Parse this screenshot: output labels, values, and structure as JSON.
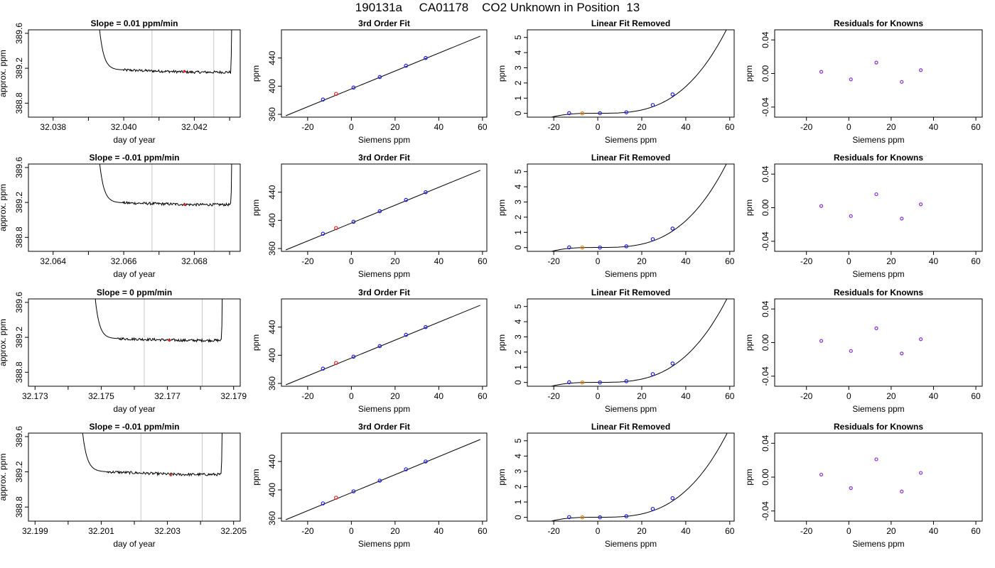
{
  "figure_title": "190131a     CA01178    CO2 Unknown in Position  13",
  "colors": {
    "trace": "#000000",
    "marker_lines": "#c8c8c8",
    "highlight_point": "#e8201c",
    "known_points": "#1c1cf0",
    "unknown_fit_point": "#e8201c",
    "unknown_removed_point": "#f08000",
    "residual_points": "#8a2be2"
  },
  "chart_data": [
    {
      "type": "line",
      "row": 1,
      "panel": "time-series",
      "title": "Slope =  0.01  ppm/min",
      "xlabel": "day of year",
      "ylabel": "approx. ppm",
      "xlim": [
        32.0373,
        32.0433
      ],
      "ylim": [
        388.64,
        389.64
      ],
      "xticks": [
        32.038,
        32.04,
        32.042
      ],
      "xticklabels": [
        "32.038",
        "32.040",
        "32.042"
      ],
      "yticks": [
        388.8,
        389.2,
        389.6
      ],
      "yticklabels": [
        "388.8",
        "389.2",
        "389.6"
      ],
      "x_start": 32.0392,
      "x_end": 32.0431,
      "plateau": 389.155,
      "early_offset": 0.025,
      "end_rise_from": 389.18,
      "vlines": [
        32.0408,
        32.04255
      ],
      "highlight": {
        "x": 32.04172,
        "y": 389.165
      }
    },
    {
      "type": "scatter",
      "row": 1,
      "panel": "3rd-order-fit",
      "title": "3rd Order Fit",
      "xlabel": "Siemens ppm",
      "ylabel": "ppm",
      "xlim": [
        -32,
        62
      ],
      "ylim": [
        356,
        480
      ],
      "xticks": [
        -20,
        0,
        20,
        40,
        60
      ],
      "yticks": [
        360,
        400,
        440
      ],
      "line": {
        "x": [
          -30,
          59
        ],
        "y": [
          358,
          471
        ]
      },
      "known_points": {
        "x": [
          -13,
          1,
          13,
          25,
          34
        ],
        "y": [
          381,
          398,
          413,
          429,
          440
        ]
      },
      "unknown_point": {
        "x": [
          -7
        ],
        "y": [
          389
        ]
      }
    },
    {
      "type": "scatter",
      "row": 1,
      "panel": "linear-fit-removed",
      "title": "Linear Fit Removed",
      "xlabel": "Siemens ppm",
      "ylabel": "ppm",
      "xlim": [
        -32,
        62
      ],
      "ylim": [
        -0.25,
        5.5
      ],
      "xticks": [
        -20,
        0,
        20,
        40,
        60
      ],
      "yticks": [
        0,
        1,
        2,
        3,
        4,
        5
      ],
      "curve_x_range": [
        -30,
        59
      ],
      "curve_coefficients": [
        0.005,
        0,
        0,
        2.75e-05
      ],
      "known_points": {
        "x": [
          -13,
          1,
          13,
          25,
          34
        ],
        "y": [
          0.01,
          0.01,
          0.07,
          0.55,
          1.25
        ]
      },
      "unknown_point": {
        "x": [
          -7
        ],
        "y": [
          0.0
        ]
      }
    },
    {
      "type": "scatter",
      "row": 1,
      "panel": "residuals",
      "title": "Residuals for Knowns",
      "xlabel": "Siemens ppm",
      "ylabel": "ppm",
      "xlim": [
        -35,
        63
      ],
      "ylim": [
        -0.052,
        0.052
      ],
      "xticks": [
        -20,
        0,
        20,
        40,
        60
      ],
      "yticks": [
        -0.04,
        0.0,
        0.04
      ],
      "yticklabels": [
        "-0.04",
        "0.00",
        "0.04"
      ],
      "points": {
        "x": [
          -13,
          1,
          13,
          25,
          34
        ],
        "y": [
          0.002,
          -0.007,
          0.013,
          -0.01,
          0.004
        ]
      }
    },
    {
      "type": "line",
      "row": 2,
      "panel": "time-series",
      "title": "Slope =  -0.01  ppm/min",
      "xlabel": "day of year",
      "ylabel": "approx. ppm",
      "xlim": [
        32.0633,
        32.0693
      ],
      "ylim": [
        388.64,
        389.64
      ],
      "xticks": [
        32.064,
        32.066,
        32.068
      ],
      "xticklabels": [
        "32.064",
        "32.066",
        "32.068"
      ],
      "yticks": [
        388.8,
        389.2,
        389.6
      ],
      "yticklabels": [
        "388.8",
        "389.2",
        "389.6"
      ],
      "x_start": 32.0652,
      "x_end": 32.0691,
      "plateau": 389.175,
      "early_offset": 0.02,
      "end_rise_from": 389.16,
      "vlines": [
        32.0668,
        32.06857
      ],
      "highlight": {
        "x": 32.06773,
        "y": 389.175
      }
    },
    {
      "type": "scatter",
      "row": 2,
      "panel": "3rd-order-fit",
      "title": "3rd Order Fit",
      "xlabel": "Siemens ppm",
      "ylabel": "ppm",
      "xlim": [
        -32,
        62
      ],
      "ylim": [
        356,
        480
      ],
      "xticks": [
        -20,
        0,
        20,
        40,
        60
      ],
      "yticks": [
        360,
        400,
        440
      ],
      "line": {
        "x": [
          -30,
          59
        ],
        "y": [
          358,
          471
        ]
      },
      "known_points": {
        "x": [
          -13,
          1,
          13,
          25,
          34
        ],
        "y": [
          381,
          398,
          413,
          429,
          440
        ]
      },
      "unknown_point": {
        "x": [
          -7
        ],
        "y": [
          389
        ]
      }
    },
    {
      "type": "scatter",
      "row": 2,
      "panel": "linear-fit-removed",
      "title": "Linear Fit Removed",
      "xlabel": "Siemens ppm",
      "ylabel": "ppm",
      "xlim": [
        -32,
        62
      ],
      "ylim": [
        -0.25,
        5.5
      ],
      "xticks": [
        -20,
        0,
        20,
        40,
        60
      ],
      "yticks": [
        0,
        1,
        2,
        3,
        4,
        5
      ],
      "curve_x_range": [
        -30,
        59
      ],
      "curve_coefficients": [
        0.005,
        0,
        0,
        2.75e-05
      ],
      "known_points": {
        "x": [
          -13,
          1,
          13,
          25,
          34
        ],
        "y": [
          0.01,
          0.0,
          0.08,
          0.55,
          1.25
        ]
      },
      "unknown_point": {
        "x": [
          -7
        ],
        "y": [
          0.0
        ]
      }
    },
    {
      "type": "scatter",
      "row": 2,
      "panel": "residuals",
      "title": "Residuals for Knowns",
      "xlabel": "Siemens ppm",
      "ylabel": "ppm",
      "xlim": [
        -35,
        63
      ],
      "ylim": [
        -0.052,
        0.052
      ],
      "xticks": [
        -20,
        0,
        20,
        40,
        60
      ],
      "yticks": [
        -0.04,
        0.0,
        0.04
      ],
      "yticklabels": [
        "-0.04",
        "0.00",
        "0.04"
      ],
      "points": {
        "x": [
          -13,
          1,
          13,
          25,
          34
        ],
        "y": [
          0.002,
          -0.01,
          0.016,
          -0.013,
          0.004
        ]
      }
    },
    {
      "type": "line",
      "row": 3,
      "panel": "time-series",
      "title": "Slope =  0  ppm/min",
      "xlabel": "day of year",
      "ylabel": "approx. ppm",
      "xlim": [
        32.1728,
        32.1792
      ],
      "ylim": [
        388.64,
        389.64
      ],
      "xticks": [
        32.173,
        32.175,
        32.177,
        32.179
      ],
      "xticklabels": [
        "32.173",
        "32.175",
        "32.177",
        "32.179"
      ],
      "yticks": [
        388.8,
        389.2,
        389.6
      ],
      "yticklabels": [
        "388.8",
        "389.2",
        "389.6"
      ],
      "x_start": 32.1747,
      "x_end": 32.1787,
      "plateau": 389.165,
      "early_offset": 0.02,
      "end_rise_from": 389.17,
      "vlines": [
        32.1763,
        32.17805
      ],
      "highlight": {
        "x": 32.17706,
        "y": 389.165
      }
    },
    {
      "type": "scatter",
      "row": 3,
      "panel": "3rd-order-fit",
      "title": "3rd Order Fit",
      "xlabel": "Siemens ppm",
      "ylabel": "ppm",
      "xlim": [
        -32,
        62
      ],
      "ylim": [
        356,
        480
      ],
      "xticks": [
        -20,
        0,
        20,
        40,
        60
      ],
      "yticks": [
        360,
        400,
        440
      ],
      "line": {
        "x": [
          -30,
          59
        ],
        "y": [
          358,
          471
        ]
      },
      "known_points": {
        "x": [
          -13,
          1,
          13,
          25,
          34
        ],
        "y": [
          381,
          398,
          413,
          429,
          440
        ]
      },
      "unknown_point": {
        "x": [
          -7
        ],
        "y": [
          389
        ]
      }
    },
    {
      "type": "scatter",
      "row": 3,
      "panel": "linear-fit-removed",
      "title": "Linear Fit Removed",
      "xlabel": "Siemens ppm",
      "ylabel": "ppm",
      "xlim": [
        -32,
        62
      ],
      "ylim": [
        -0.25,
        5.5
      ],
      "xticks": [
        -20,
        0,
        20,
        40,
        60
      ],
      "yticks": [
        0,
        1,
        2,
        3,
        4,
        5
      ],
      "curve_x_range": [
        -30,
        59
      ],
      "curve_coefficients": [
        0.005,
        0,
        0,
        2.72e-05
      ],
      "known_points": {
        "x": [
          -13,
          1,
          13,
          25,
          34
        ],
        "y": [
          0.01,
          0.0,
          0.08,
          0.55,
          1.25
        ]
      },
      "unknown_point": {
        "x": [
          -7
        ],
        "y": [
          0.0
        ]
      }
    },
    {
      "type": "scatter",
      "row": 3,
      "panel": "residuals",
      "title": "Residuals for Knowns",
      "xlabel": "Siemens ppm",
      "ylabel": "ppm",
      "xlim": [
        -35,
        63
      ],
      "ylim": [
        -0.052,
        0.052
      ],
      "xticks": [
        -20,
        0,
        20,
        40,
        60
      ],
      "yticks": [
        -0.04,
        0.0,
        0.04
      ],
      "yticklabels": [
        "-0.04",
        "0.00",
        "0.04"
      ],
      "points": {
        "x": [
          -13,
          1,
          13,
          25,
          34
        ],
        "y": [
          0.002,
          -0.01,
          0.017,
          -0.013,
          0.004
        ]
      }
    },
    {
      "type": "line",
      "row": 4,
      "panel": "time-series",
      "title": "Slope =  -0.01  ppm/min",
      "xlabel": "day of year",
      "ylabel": "approx. ppm",
      "xlim": [
        32.1988,
        32.2052
      ],
      "ylim": [
        388.64,
        389.64
      ],
      "xticks": [
        32.199,
        32.201,
        32.203,
        32.205
      ],
      "xticklabels": [
        "32.199",
        "32.201",
        "32.203",
        "32.205"
      ],
      "yticks": [
        388.8,
        389.2,
        389.6
      ],
      "yticklabels": [
        "388.8",
        "389.2",
        "389.6"
      ],
      "x_start": 32.2003,
      "x_end": 32.2047,
      "plateau": 389.17,
      "early_offset": 0.03,
      "end_rise_from": 389.16,
      "vlines": [
        32.2022,
        32.20405
      ],
      "highlight": {
        "x": 32.2031,
        "y": 389.165
      }
    },
    {
      "type": "scatter",
      "row": 4,
      "panel": "3rd-order-fit",
      "title": "3rd Order Fit",
      "xlabel": "Siemens ppm",
      "ylabel": "ppm",
      "xlim": [
        -32,
        62
      ],
      "ylim": [
        356,
        480
      ],
      "xticks": [
        -20,
        0,
        20,
        40,
        60
      ],
      "yticks": [
        360,
        400,
        440
      ],
      "line": {
        "x": [
          -30,
          59
        ],
        "y": [
          358,
          471
        ]
      },
      "known_points": {
        "x": [
          -13,
          1,
          13,
          25,
          34
        ],
        "y": [
          381,
          398,
          413,
          429,
          440
        ]
      },
      "unknown_point": {
        "x": [
          -7
        ],
        "y": [
          389
        ]
      }
    },
    {
      "type": "scatter",
      "row": 4,
      "panel": "linear-fit-removed",
      "title": "Linear Fit Removed",
      "xlabel": "Siemens ppm",
      "ylabel": "ppm",
      "xlim": [
        -32,
        62
      ],
      "ylim": [
        -0.25,
        5.5
      ],
      "xticks": [
        -20,
        0,
        20,
        40,
        60
      ],
      "yticks": [
        0,
        1,
        2,
        3,
        4,
        5
      ],
      "curve_x_range": [
        -30,
        59
      ],
      "curve_coefficients": [
        0.005,
        0,
        0,
        2.7e-05
      ],
      "known_points": {
        "x": [
          -13,
          1,
          13,
          25,
          34
        ],
        "y": [
          0.01,
          0.0,
          0.07,
          0.55,
          1.25
        ]
      },
      "unknown_point": {
        "x": [
          -7
        ],
        "y": [
          0.0
        ]
      }
    },
    {
      "type": "scatter",
      "row": 4,
      "panel": "residuals",
      "title": "Residuals for Knowns",
      "xlabel": "Siemens ppm",
      "ylabel": "ppm",
      "xlim": [
        -35,
        63
      ],
      "ylim": [
        -0.052,
        0.052
      ],
      "xticks": [
        -20,
        0,
        20,
        40,
        60
      ],
      "yticks": [
        -0.04,
        0.0,
        0.04
      ],
      "yticklabels": [
        "-0.04",
        "0.00",
        "0.04"
      ],
      "points": {
        "x": [
          -13,
          1,
          13,
          25,
          34
        ],
        "y": [
          0.003,
          -0.013,
          0.021,
          -0.017,
          0.005
        ]
      }
    }
  ]
}
